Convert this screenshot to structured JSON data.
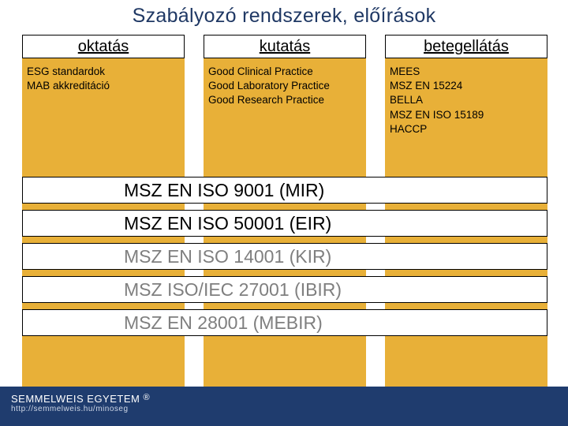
{
  "title": "Szabályozó rendszerek, előírások",
  "columns": {
    "headers": [
      "oktatás",
      "kutatás",
      "betegellátás"
    ],
    "bodies": [
      [
        "ESG standardok",
        "MAB akkreditáció"
      ],
      [
        "Good Clinical Practice",
        "Good Laboratory Practice",
        "Good Research Practice"
      ],
      [
        "MEES",
        "MSZ EN 15224",
        "BELLA",
        "MSZ EN ISO 15189",
        "HACCP"
      ]
    ]
  },
  "bars": [
    {
      "text": "MSZ EN ISO 9001 (MIR)",
      "muted": false
    },
    {
      "text": "MSZ EN ISO 50001 (EIR)",
      "muted": false
    },
    {
      "text": "MSZ EN ISO 14001 (KIR)",
      "muted": true
    },
    {
      "text": "MSZ ISO/IEC 27001 (IBIR)",
      "muted": true
    },
    {
      "text": "MSZ EN 28001 (MEBIR)",
      "muted": true
    }
  ],
  "footer": {
    "university": "SEMMELWEIS EGYETEM",
    "mark": "®",
    "url": "http://semmelweis.hu/minoseg"
  },
  "colors": {
    "column_bg": "#e8b038",
    "footer_bg": "#1f3c6e",
    "title_color": "#1f3864",
    "muted_text": "#7f7f7f"
  }
}
